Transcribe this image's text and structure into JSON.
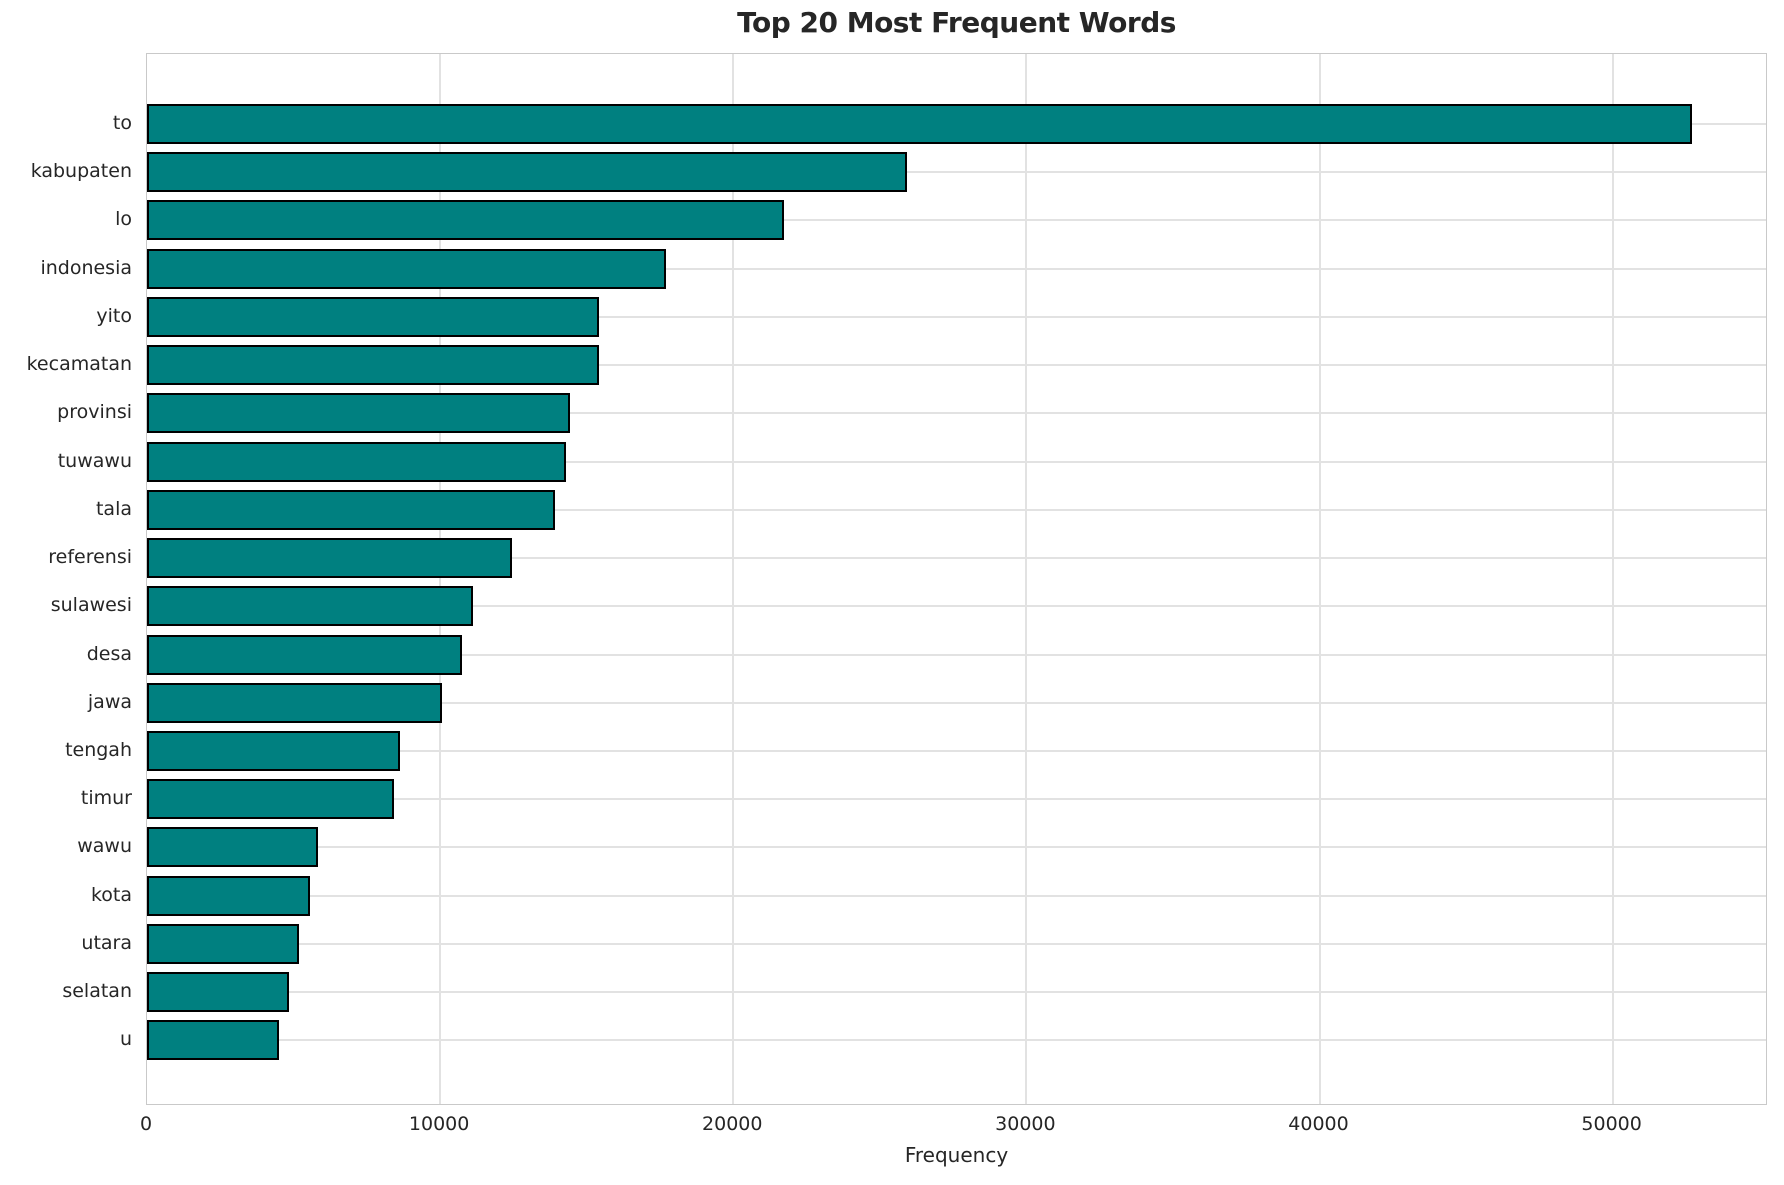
{
  "title": "Top 20 Most Frequent Words",
  "chart_data": {
    "type": "bar",
    "orientation": "horizontal",
    "title": "Top 20 Most Frequent Words",
    "xlabel": "Frequency",
    "ylabel": "",
    "categories": [
      "to",
      "kabupaten",
      "lo",
      "indonesia",
      "yito",
      "kecamatan",
      "provinsi",
      "tuwawu",
      "tala",
      "referensi",
      "sulawesi",
      "desa",
      "jawa",
      "tengah",
      "timur",
      "wawu",
      "kota",
      "utara",
      "selatan",
      "u"
    ],
    "values": [
      52700,
      25930,
      21720,
      17720,
      15430,
      15410,
      14420,
      14280,
      13930,
      12450,
      11130,
      10740,
      10080,
      8640,
      8440,
      5820,
      5560,
      5200,
      4860,
      4520
    ],
    "xticks": [
      0,
      10000,
      20000,
      30000,
      40000,
      50000
    ],
    "xtick_labels": [
      "0",
      "10000",
      "20000",
      "30000",
      "40000",
      "50000"
    ],
    "xlim": [
      0,
      55300
    ],
    "grid": true,
    "legend": "none",
    "bar_color": "#008080",
    "bar_edge_color": "#000000",
    "grid_color": "#e2e2e2",
    "spine_color": "#c9c9c9",
    "text_color": "#262626",
    "background_color": "#ffffff"
  }
}
